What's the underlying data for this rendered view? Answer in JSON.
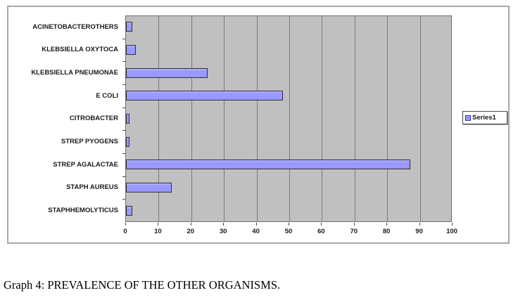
{
  "page": {
    "caption": "Graph 4: PREVALENCE OF THE OTHER ORGANISMS."
  },
  "chart_data": {
    "type": "bar",
    "orientation": "horizontal",
    "title": "",
    "xlabel": "",
    "ylabel": "",
    "categories": [
      "ACINETOBACTEROTHERS",
      "KLEBSIELLA OXYTOCA",
      "KLEBSIELLA PNEUMONAE",
      "E COLI",
      "CITROBACTER",
      "STREP PYOGENS",
      "STREP AGALACTAE",
      "STAPH AUREUS",
      "STAPHHEMOLYTICUS"
    ],
    "series": [
      {
        "name": "Series1",
        "values": [
          2,
          3,
          25,
          48,
          1,
          1,
          87,
          14,
          2
        ]
      }
    ],
    "xlim": [
      0,
      100
    ],
    "xticks": [
      0,
      10,
      20,
      30,
      40,
      50,
      60,
      70,
      80,
      90,
      100
    ],
    "grid": true,
    "legend": {
      "position": "right",
      "entries": [
        "Series1"
      ]
    },
    "colors": {
      "bar_fill": "#9999ff",
      "bar_border": "#2f2f2f",
      "plot_bg": "#c0c0c0",
      "gridline": "#7a7a7a",
      "chart_border": "#a8a8a8",
      "text": "#1a1a1a",
      "legend_marker_border": "#333399"
    }
  }
}
